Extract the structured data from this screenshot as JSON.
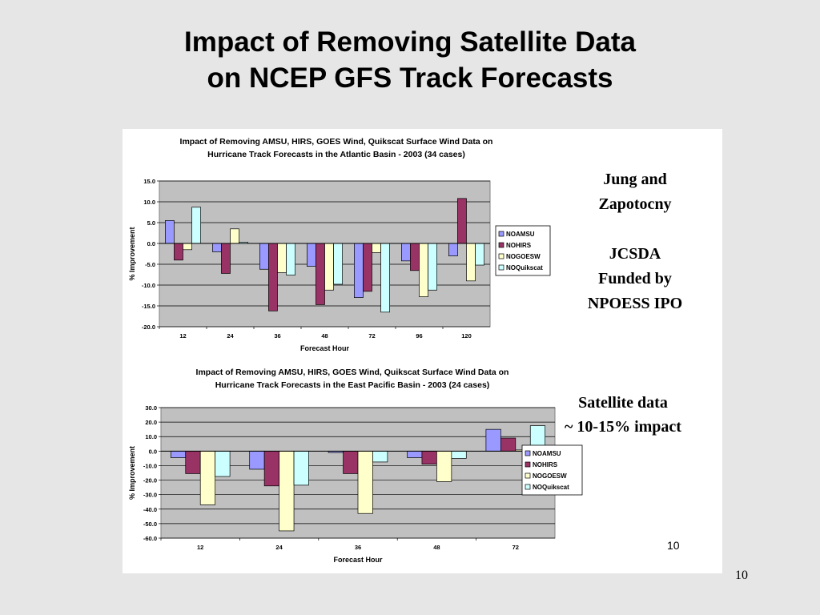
{
  "slide": {
    "title_line1": "Impact of Removing Satellite Data",
    "title_line2": "on NCEP GFS Track Forecasts",
    "note_jung": "Jung and",
    "note_zapotocny": "Zapotocny",
    "note_jcsda": "JCSDA",
    "note_funded": "Funded by",
    "note_npoess": "NPOESS IPO",
    "note_satellite": "Satellite data",
    "note_impact": "~ 10-15% impact",
    "inner_page_number": "10",
    "page_number": "10"
  },
  "colors": {
    "plot_bg": "#c0c0c0",
    "series": [
      "#9999ff",
      "#993366",
      "#ffffcc",
      "#ccffff"
    ]
  },
  "chart_data": [
    {
      "type": "bar",
      "title_line1": "Impact of Removing AMSU, HIRS, GOES Wind, Quikscat Surface Wind Data on",
      "title_line2": "Hurricane Track Forecasts in the Atlantic Basin - 2003 (34 cases)",
      "xlabel": "Forecast Hour",
      "ylabel": "% Improvement",
      "categories": [
        "12",
        "24",
        "36",
        "48",
        "72",
        "96",
        "120"
      ],
      "ylim": [
        -20.0,
        15.0
      ],
      "yticks": [
        "15.0",
        "10.0",
        "5.0",
        "0.0",
        "-5.0",
        "-10.0",
        "-15.0",
        "-20.0"
      ],
      "legend_position": "right",
      "grid": true,
      "series": [
        {
          "name": "NOAMSU",
          "values": [
            5.5,
            -2.0,
            -6.2,
            -5.5,
            -13.0,
            -4.2,
            -3.0
          ]
        },
        {
          "name": "NOHIRS",
          "values": [
            -4.0,
            -7.2,
            -16.2,
            -14.7,
            -11.5,
            -6.5,
            10.8
          ]
        },
        {
          "name": "NOGOESW",
          "values": [
            -1.5,
            3.5,
            -7.0,
            -11.2,
            -2.2,
            -12.8,
            -9.0
          ]
        },
        {
          "name": "NOQuikscat",
          "values": [
            8.7,
            0.3,
            -7.6,
            -9.8,
            -16.5,
            -11.2,
            -5.2
          ]
        }
      ]
    },
    {
      "type": "bar",
      "title_line1": "Impact of Removing AMSU, HIRS, GOES Wind, Quikscat Surface Wind Data on",
      "title_line2": "Hurricane Track Forecasts in the East Pacific Basin - 2003 (24 cases)",
      "xlabel": "Forecast Hour",
      "ylabel": "% Improvement",
      "categories": [
        "12",
        "24",
        "36",
        "48",
        "72"
      ],
      "ylim": [
        -60.0,
        30.0
      ],
      "yticks": [
        "30.0",
        "20.0",
        "10.0",
        "0.0",
        "-10.0",
        "-20.0",
        "-30.0",
        "-40.0",
        "-50.0",
        "-60.0"
      ],
      "legend_position": "right",
      "grid": true,
      "series": [
        {
          "name": "NOAMSU",
          "values": [
            -4.5,
            -12.5,
            -1.0,
            -4.5,
            15.0
          ]
        },
        {
          "name": "NOHIRS",
          "values": [
            -15.5,
            -24.0,
            -15.5,
            -9.0,
            9.0
          ]
        },
        {
          "name": "NOGOESW",
          "values": [
            -37.0,
            -55.0,
            -43.0,
            -21.0,
            0.8
          ]
        },
        {
          "name": "NOQuikscat",
          "values": [
            -17.5,
            -23.5,
            -7.5,
            -5.0,
            17.5
          ]
        }
      ]
    }
  ]
}
